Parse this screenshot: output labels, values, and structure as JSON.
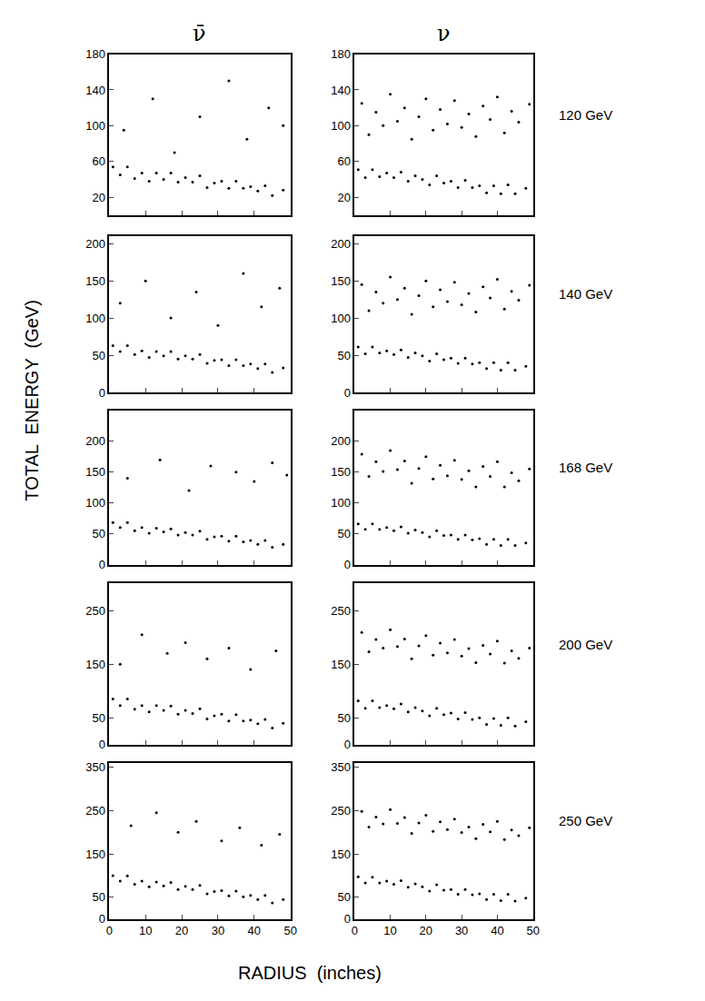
{
  "column_labels": [
    "ν̄",
    "ν"
  ],
  "row_labels": [
    "120 GeV",
    "140 GeV",
    "168 GeV",
    "200 GeV",
    "250 GeV"
  ],
  "x_label": "RADIUS  (inches)",
  "y_label": "TOTAL  ENERGY  (GeV)",
  "chart_data": [
    {
      "type": "scatter",
      "color": "#000000",
      "marker": "circle",
      "grid": false,
      "tick_labels": "y",
      "xlim": [
        0,
        50
      ],
      "xticks": [
        0,
        10,
        20,
        30,
        40,
        50
      ],
      "ylim": [
        0,
        180
      ],
      "yticks": [
        20,
        60,
        100,
        140,
        180
      ],
      "x": [
        1,
        3,
        5,
        7,
        9,
        11,
        13,
        15,
        17,
        19,
        21,
        23,
        25,
        27,
        29,
        31,
        33,
        35,
        37,
        39,
        41,
        43,
        45,
        48,
        4,
        12,
        18,
        25,
        33,
        38,
        44,
        48
      ],
      "values": [
        54,
        45,
        54,
        41,
        47,
        38,
        47,
        40,
        47,
        37,
        42,
        37,
        44,
        31,
        36,
        38,
        30,
        38,
        30,
        32,
        27,
        33,
        22,
        28,
        95,
        130,
        70,
        110,
        150,
        85,
        120,
        100
      ]
    },
    {
      "type": "scatter",
      "color": "#000000",
      "marker": "circle",
      "grid": false,
      "tick_labels": "y",
      "xlim": [
        0,
        50
      ],
      "xticks": [
        0,
        10,
        20,
        30,
        40,
        50
      ],
      "ylim": [
        0,
        180
      ],
      "yticks": [
        20,
        60,
        100,
        140,
        180
      ],
      "x": [
        1,
        3,
        5,
        7,
        9,
        11,
        13,
        15,
        17,
        19,
        21,
        23,
        25,
        27,
        29,
        31,
        33,
        35,
        37,
        39,
        41,
        43,
        45,
        48,
        2,
        4,
        6,
        8,
        10,
        12,
        14,
        16,
        18,
        20,
        22,
        24,
        26,
        28,
        30,
        32,
        34,
        36,
        38,
        40,
        42,
        44,
        46,
        49
      ],
      "values": [
        51,
        42,
        51,
        43,
        47,
        42,
        48,
        38,
        44,
        40,
        34,
        44,
        36,
        38,
        31,
        39,
        31,
        33,
        25,
        33,
        24,
        34,
        24,
        30,
        125,
        90,
        115,
        100,
        135,
        105,
        120,
        85,
        110,
        130,
        95,
        118,
        102,
        128,
        98,
        113,
        88,
        122,
        107,
        132,
        92,
        116,
        104,
        124
      ]
    },
    {
      "type": "scatter",
      "color": "#000000",
      "marker": "circle",
      "grid": false,
      "tick_labels": "y",
      "xlim": [
        0,
        50
      ],
      "xticks": [
        0,
        10,
        20,
        30,
        40,
        50
      ],
      "ylim": [
        0,
        210
      ],
      "yticks": [
        0,
        50,
        100,
        150,
        200
      ],
      "x": [
        1,
        3,
        5,
        7,
        9,
        11,
        13,
        15,
        17,
        19,
        21,
        23,
        25,
        27,
        29,
        31,
        33,
        35,
        37,
        39,
        41,
        43,
        45,
        48,
        3,
        10,
        17,
        24,
        30,
        37,
        42,
        47
      ],
      "values": [
        63,
        55,
        63,
        51,
        56,
        47,
        55,
        49,
        55,
        45,
        49,
        45,
        51,
        39,
        43,
        44,
        36,
        44,
        36,
        38,
        32,
        38,
        27,
        33,
        120,
        150,
        100,
        135,
        90,
        160,
        115,
        140
      ]
    },
    {
      "type": "scatter",
      "color": "#000000",
      "marker": "circle",
      "grid": false,
      "tick_labels": "y",
      "xlim": [
        0,
        50
      ],
      "xticks": [
        0,
        10,
        20,
        30,
        40,
        50
      ],
      "ylim": [
        0,
        210
      ],
      "yticks": [
        0,
        50,
        100,
        150,
        200
      ],
      "x": [
        1,
        3,
        5,
        7,
        9,
        11,
        13,
        15,
        17,
        19,
        21,
        23,
        25,
        27,
        29,
        31,
        33,
        35,
        37,
        39,
        41,
        43,
        45,
        48,
        2,
        4,
        6,
        8,
        10,
        12,
        14,
        16,
        18,
        20,
        22,
        24,
        26,
        28,
        30,
        32,
        34,
        36,
        38,
        40,
        42,
        44,
        46,
        49
      ],
      "values": [
        61,
        52,
        61,
        53,
        56,
        51,
        57,
        47,
        53,
        49,
        42,
        52,
        44,
        46,
        39,
        46,
        38,
        40,
        32,
        40,
        30,
        40,
        30,
        35,
        145,
        110,
        135,
        120,
        155,
        125,
        140,
        105,
        130,
        150,
        115,
        138,
        122,
        148,
        118,
        133,
        108,
        142,
        127,
        152,
        112,
        136,
        124,
        144
      ]
    },
    {
      "type": "scatter",
      "color": "#000000",
      "marker": "circle",
      "grid": false,
      "tick_labels": "y",
      "xlim": [
        0,
        50
      ],
      "xticks": [
        0,
        10,
        20,
        30,
        40,
        50
      ],
      "ylim": [
        0,
        250
      ],
      "yticks": [
        0,
        50,
        100,
        150,
        200
      ],
      "x": [
        1,
        3,
        5,
        7,
        9,
        11,
        13,
        15,
        17,
        19,
        21,
        23,
        25,
        27,
        29,
        31,
        33,
        35,
        37,
        39,
        41,
        43,
        45,
        48,
        5,
        14,
        22,
        28,
        35,
        40,
        45,
        49
      ],
      "values": [
        68,
        60,
        68,
        55,
        60,
        51,
        59,
        53,
        58,
        48,
        52,
        48,
        54,
        41,
        45,
        46,
        38,
        46,
        37,
        39,
        33,
        39,
        28,
        33,
        140,
        170,
        120,
        160,
        150,
        135,
        165,
        145
      ]
    },
    {
      "type": "scatter",
      "color": "#000000",
      "marker": "circle",
      "grid": false,
      "tick_labels": "y",
      "xlim": [
        0,
        50
      ],
      "xticks": [
        0,
        10,
        20,
        30,
        40,
        50
      ],
      "ylim": [
        0,
        250
      ],
      "yticks": [
        0,
        50,
        100,
        150,
        200
      ],
      "x": [
        1,
        3,
        5,
        7,
        9,
        11,
        13,
        15,
        17,
        19,
        21,
        23,
        25,
        27,
        29,
        31,
        33,
        35,
        37,
        39,
        41,
        43,
        45,
        48,
        2,
        4,
        6,
        8,
        10,
        12,
        14,
        16,
        18,
        20,
        22,
        24,
        26,
        28,
        30,
        32,
        34,
        36,
        38,
        40,
        42,
        44,
        46,
        49
      ],
      "values": [
        66,
        57,
        66,
        57,
        60,
        55,
        61,
        51,
        56,
        52,
        45,
        55,
        47,
        48,
        41,
        48,
        40,
        42,
        33,
        41,
        31,
        41,
        31,
        35,
        179,
        143,
        167,
        151,
        185,
        154,
        168,
        132,
        156,
        175,
        139,
        161,
        144,
        169,
        138,
        152,
        126,
        159,
        143,
        167,
        126,
        149,
        136,
        155
      ]
    },
    {
      "type": "scatter",
      "color": "#000000",
      "marker": "circle",
      "grid": false,
      "tick_labels": "y",
      "xlim": [
        0,
        50
      ],
      "xticks": [
        0,
        10,
        20,
        30,
        40,
        50
      ],
      "ylim": [
        0,
        300
      ],
      "yticks": [
        0,
        50,
        150,
        250
      ],
      "x": [
        1,
        3,
        5,
        7,
        9,
        11,
        13,
        15,
        17,
        19,
        21,
        23,
        25,
        27,
        29,
        31,
        33,
        35,
        37,
        39,
        41,
        43,
        45,
        48,
        3,
        9,
        16,
        21,
        27,
        33,
        39,
        46
      ],
      "values": [
        85,
        73,
        85,
        66,
        73,
        61,
        73,
        64,
        72,
        57,
        64,
        58,
        67,
        48,
        54,
        57,
        44,
        56,
        44,
        46,
        39,
        47,
        31,
        40,
        150,
        205,
        170,
        190,
        160,
        180,
        140,
        175
      ]
    },
    {
      "type": "scatter",
      "color": "#000000",
      "marker": "circle",
      "grid": false,
      "tick_labels": "y",
      "xlim": [
        0,
        50
      ],
      "xticks": [
        0,
        10,
        20,
        30,
        40,
        50
      ],
      "ylim": [
        0,
        300
      ],
      "yticks": [
        0,
        50,
        150,
        250
      ],
      "x": [
        1,
        3,
        5,
        7,
        9,
        11,
        13,
        15,
        17,
        19,
        21,
        23,
        25,
        27,
        29,
        31,
        33,
        35,
        37,
        39,
        41,
        43,
        45,
        48,
        2,
        4,
        6,
        8,
        10,
        12,
        14,
        16,
        18,
        20,
        22,
        24,
        26,
        28,
        30,
        32,
        34,
        36,
        38,
        40,
        42,
        44,
        46,
        49
      ],
      "values": [
        82,
        68,
        82,
        69,
        73,
        67,
        76,
        61,
        69,
        63,
        54,
        68,
        56,
        59,
        48,
        60,
        47,
        50,
        38,
        49,
        36,
        50,
        35,
        43,
        209,
        173,
        196,
        180,
        214,
        183,
        197,
        160,
        184,
        203,
        167,
        189,
        171,
        196,
        165,
        179,
        153,
        185,
        169,
        193,
        152,
        175,
        161,
        180
      ]
    },
    {
      "type": "scatter",
      "color": "#000000",
      "marker": "circle",
      "grid": false,
      "xlim": [
        0,
        50
      ],
      "xticks": [
        0,
        10,
        20,
        30,
        40,
        50
      ],
      "ylim": [
        0,
        360
      ],
      "yticks": [
        0,
        50,
        150,
        250,
        350
      ],
      "x": [
        1,
        3,
        5,
        7,
        9,
        11,
        13,
        15,
        17,
        19,
        21,
        23,
        25,
        27,
        29,
        31,
        33,
        35,
        37,
        39,
        41,
        43,
        45,
        48,
        6,
        13,
        19,
        24,
        31,
        36,
        42,
        47
      ],
      "values": [
        100,
        87,
        99,
        80,
        87,
        74,
        85,
        76,
        84,
        68,
        75,
        68,
        77,
        58,
        63,
        65,
        53,
        64,
        51,
        54,
        45,
        54,
        37,
        45,
        215,
        245,
        200,
        225,
        180,
        210,
        170,
        195
      ]
    },
    {
      "type": "scatter",
      "color": "#000000",
      "marker": "circle",
      "grid": false,
      "xlim": [
        0,
        50
      ],
      "xticks": [
        0,
        10,
        20,
        30,
        40,
        50
      ],
      "ylim": [
        0,
        360
      ],
      "yticks": [
        0,
        50,
        150,
        250,
        350
      ],
      "x": [
        1,
        3,
        5,
        7,
        9,
        11,
        13,
        15,
        17,
        19,
        21,
        23,
        25,
        27,
        29,
        31,
        33,
        35,
        37,
        39,
        41,
        43,
        45,
        48,
        2,
        4,
        6,
        8,
        10,
        12,
        14,
        16,
        18,
        20,
        22,
        24,
        26,
        28,
        30,
        32,
        34,
        36,
        38,
        40,
        42,
        44,
        46,
        49
      ],
      "values": [
        97,
        83,
        96,
        83,
        87,
        80,
        88,
        73,
        81,
        74,
        64,
        79,
        66,
        68,
        57,
        68,
        56,
        58,
        45,
        57,
        42,
        57,
        41,
        48,
        248,
        212,
        235,
        219,
        252,
        220,
        234,
        197,
        221,
        239,
        202,
        224,
        206,
        230,
        199,
        212,
        185,
        218,
        201,
        225,
        183,
        205,
        192,
        210
      ]
    }
  ]
}
